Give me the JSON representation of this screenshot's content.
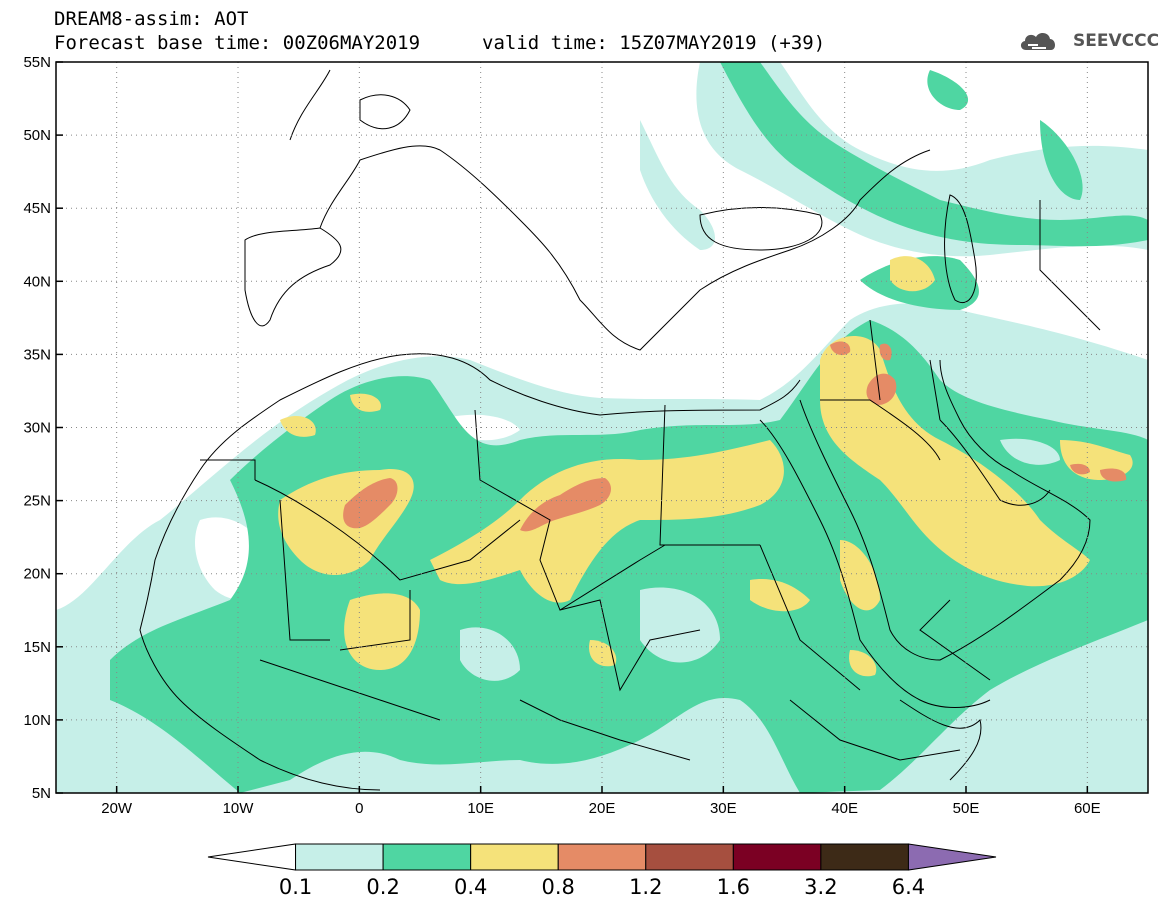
{
  "header": {
    "title": "DREAM8-assim: AOT",
    "base_time": "Forecast base time: 00Z06MAY2019",
    "valid_time": "valid time: 15Z07MAY2019 (+39)",
    "logo_text": "SEEVCCC"
  },
  "axes": {
    "y_ticks": [
      "55N",
      "50N",
      "45N",
      "40N",
      "35N",
      "30N",
      "25N",
      "20N",
      "15N",
      "10N",
      "5N"
    ],
    "y_values": [
      55,
      50,
      45,
      40,
      35,
      30,
      25,
      20,
      15,
      10,
      5
    ],
    "x_ticks": [
      "20W",
      "10W",
      "0",
      "10E",
      "20E",
      "30E",
      "40E",
      "50E",
      "60E"
    ],
    "x_values": [
      -20,
      -10,
      0,
      10,
      20,
      30,
      40,
      50,
      60
    ],
    "lon_range": [
      -25,
      65
    ],
    "lat_range": [
      5,
      55
    ],
    "grid": "dotted"
  },
  "colorbar": {
    "ticks": [
      "0.1",
      "0.2",
      "0.4",
      "0.8",
      "1.2",
      "1.6",
      "3.2",
      "6.4"
    ],
    "colors": [
      "#ffffff",
      "#c6efe8",
      "#4fd6a2",
      "#f5e27a",
      "#e58b66",
      "#a64f3f",
      "#7b0023",
      "#3d2a17",
      "#8c6bb1"
    ]
  },
  "shading_colors": {
    "light": "#c6efe8",
    "teal": "#4fd6a2",
    "yellow": "#f5e27a",
    "orange": "#e58b66",
    "coast": "#000000"
  }
}
